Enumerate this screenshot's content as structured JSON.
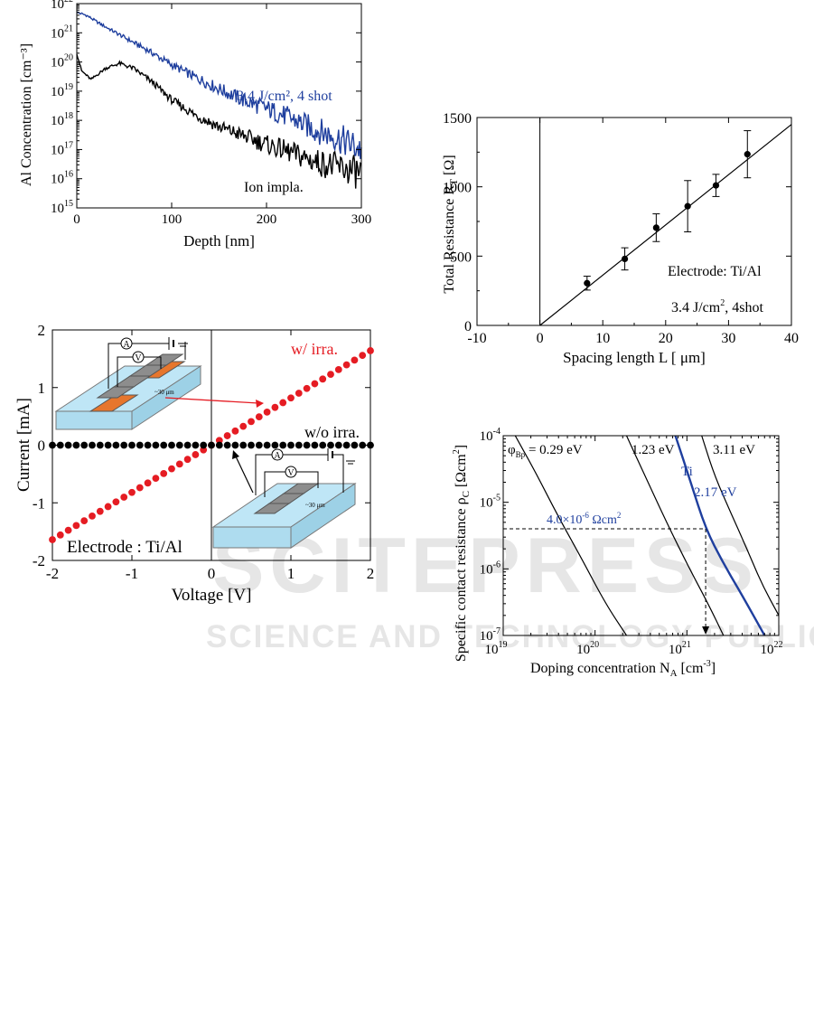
{
  "watermark": {
    "line1": "SCITEPRESS",
    "line2": "SCIENCE AND TECHNOLOGY PUBLICATIONS"
  },
  "chart_data": [
    {
      "id": "sims",
      "type": "line",
      "xlabel": "Depth [nm]",
      "ylabel": "Al Concentration [cm⁻³]",
      "xlim": [
        0,
        300
      ],
      "ylim": [
        1000000000000000.0,
        1e+22
      ],
      "yscale": "log",
      "xticks": [
        "0",
        "100",
        "200",
        "300"
      ],
      "yticks_exp": [
        "15",
        "16",
        "17",
        "18",
        "19",
        "20",
        "21",
        "22"
      ],
      "ytick_base": "10",
      "series": [
        {
          "name": "3.4 J/cm², 4 shot",
          "color": "#1f3f9e",
          "x": [
            0,
            10,
            25,
            50,
            75,
            100,
            125,
            150,
            175,
            200,
            225,
            250,
            275,
            300
          ],
          "y": [
            5e+21,
            4e+21,
            2e+21,
            7e+20,
            2.5e+20,
            8e+19,
            3e+19,
            1.2e+19,
            5e+18,
            2.5e+18,
            1.2e+18,
            5e+17,
            2.5e+17,
            1e+17
          ]
        },
        {
          "name": "Ion impla.",
          "color": "#000000",
          "x": [
            0,
            5,
            15,
            30,
            45,
            60,
            80,
            100,
            125,
            150,
            175,
            200,
            225,
            250,
            275,
            300
          ],
          "y": [
            2e+20,
            5e+19,
            2.5e+19,
            6e+19,
            9e+19,
            6e+19,
            2e+19,
            5e+18,
            1.5e+18,
            6e+17,
            3e+17,
            1.5e+17,
            8e+16,
            4e+16,
            2.5e+16,
            1.5e+16
          ]
        }
      ]
    },
    {
      "id": "tlm",
      "type": "scatter",
      "xlabel": "Spacing length L [ μm]",
      "ylabel": "Total Resistance R_T [Ω]",
      "xlim": [
        -10,
        40
      ],
      "ylim": [
        0,
        1500
      ],
      "xticks": [
        "-10",
        "0",
        "10",
        "20",
        "30",
        "40"
      ],
      "yticks": [
        "0",
        "500",
        "1000",
        "1500"
      ],
      "series": [
        {
          "name": "measured",
          "x": [
            7.5,
            13.5,
            18.5,
            23.5,
            28,
            33
          ],
          "y": [
            305,
            480,
            705,
            860,
            1010,
            1235
          ],
          "err": [
            50,
            80,
            100,
            185,
            80,
            170
          ]
        },
        {
          "name": "fit",
          "x": [
            0,
            40
          ],
          "y": [
            0,
            1450
          ]
        }
      ],
      "annotations": [
        "Electrode: Ti/Al",
        "3.4 J/cm², 4shot"
      ]
    },
    {
      "id": "iv",
      "type": "scatter",
      "xlabel": "Voltage [V]",
      "ylabel": "Current [mA]",
      "xlim": [
        -2,
        2
      ],
      "ylim": [
        -2,
        2
      ],
      "xticks": [
        "-2",
        "-1",
        "0",
        "1",
        "2"
      ],
      "yticks": [
        "-2",
        "-1",
        "0",
        "1",
        "2"
      ],
      "series": [
        {
          "name": "w/ irra.",
          "color": "#e51c23",
          "slope": 0.82
        },
        {
          "name": "w/o irra.",
          "color": "#000000",
          "slope": 0
        }
      ],
      "points_per_series": 41,
      "annotations": [
        "Electrode : Ti/Al"
      ],
      "inset_labels": {
        "ammeter": "A",
        "voltmeter": "V",
        "spacing": "~30 μm"
      }
    },
    {
      "id": "rhoc",
      "type": "line",
      "xlabel": "Doping concentration N_A [cm⁻³]",
      "ylabel": "Specific contact resistance ρ_C [Ωcm²]",
      "xscale": "log",
      "yscale": "log",
      "xlim": [
        1e+19,
        1e+22
      ],
      "ylim": [
        1e-07,
        0.0001
      ],
      "xtick_exp": [
        "19",
        "20",
        "21",
        "22"
      ],
      "ytick_exp": [
        "-7",
        "-6",
        "-5",
        "-4"
      ],
      "tick_base": "10",
      "series": [
        {
          "name": "0.29 eV",
          "color": "#000000",
          "x": [
            1.35e+19,
            2.2e+19,
            4e+19,
            7e+19,
            1.3e+20,
            2.2e+20
          ],
          "y": [
            0.0001,
            3e-05,
            6e-06,
            1.5e-06,
            3e-07,
            1e-07
          ]
        },
        {
          "name": "1.23 eV",
          "color": "#000000",
          "x": [
            2.2e+20,
            3.5e+20,
            6e+20,
            1e+21,
            1.7e+21,
            2.5e+21
          ],
          "y": [
            0.0001,
            2.5e-05,
            5e-06,
            1.2e-06,
            3e-07,
            1e-07
          ]
        },
        {
          "name": "2.17 eV",
          "color": "#1f3f9e",
          "x": [
            7.5e+20,
            1.1e+21,
            1.6e+21,
            2.5e+21,
            4e+21,
            7e+21
          ],
          "y": [
            0.0001,
            2e-05,
            4e-06,
            1.2e-06,
            4e-07,
            1e-07
          ]
        },
        {
          "name": "3.11 eV",
          "color": "#000000",
          "x": [
            1.45e+21,
            2e+21,
            3e+21,
            4.5e+21,
            6.5e+21,
            1e+22
          ],
          "y": [
            0.0001,
            2.5e-05,
            7e-06,
            2e-06,
            6e-07,
            2e-07
          ]
        }
      ],
      "labels": {
        "phi_prefix": "φ",
        "phi_sub": "Bp",
        "first": " = 0.29 eV",
        "second": "1.23 eV",
        "third": "3.11 eV",
        "ti": "Ti",
        "ti_val": "2.17 eV"
      },
      "marker": {
        "text": "4.0×10⁻⁶ Ωcm²",
        "value": 4e-06,
        "x": 1.6e+21
      }
    }
  ]
}
